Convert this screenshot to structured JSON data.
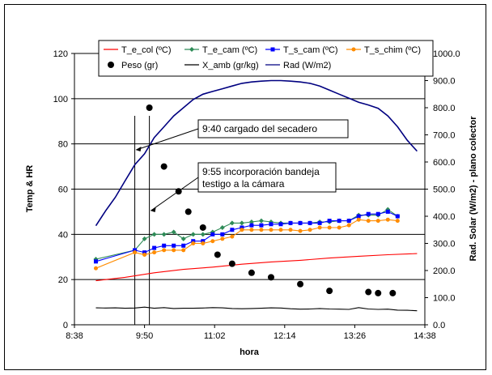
{
  "chart_data": {
    "type": "line",
    "xlabel": "hora",
    "ylabel": "Temp & HR",
    "y2label": "Rad. Solar (W/m2) - plano colector",
    "x_ticks": [
      "8:38",
      "9:50",
      "11:02",
      "12:14",
      "13:26",
      "14:38"
    ],
    "x_range": [
      "8:38",
      "14:38"
    ],
    "ylim": [
      0,
      120
    ],
    "y_ticks": [
      "0",
      "20",
      "40",
      "60",
      "80",
      "100",
      "120"
    ],
    "y2lim": [
      0,
      1000
    ],
    "y2_ticks": [
      "0.0",
      "100.0",
      "200.0",
      "300.0",
      "400.0",
      "500.0",
      "600.0",
      "700.0",
      "800.0",
      "900.0",
      "1000.0"
    ],
    "grid": "horizontal major gridlines",
    "legend_position": "top",
    "vertical_markers": [
      "9:40",
      "9:55"
    ],
    "annotations": [
      {
        "lines": [
          "9:40 cargado del secadero"
        ],
        "x": "9:40"
      },
      {
        "lines": [
          "9:55 incorporación bandeja",
          "testigo a la cámara"
        ],
        "x": "9:55"
      }
    ],
    "series": [
      {
        "name": "T_e_col (ºC)",
        "axis": "left",
        "color": "#ff0000",
        "marker": "none",
        "x": [
          "9:00",
          "9:30",
          "10:00",
          "10:30",
          "11:00",
          "11:30",
          "12:00",
          "12:30",
          "13:00",
          "13:30",
          "14:00",
          "14:30"
        ],
        "values": [
          19.5,
          21,
          23,
          24.5,
          25.5,
          26.8,
          27.8,
          28.5,
          29.5,
          30.3,
          31,
          31.5
        ]
      },
      {
        "name": "T_e_cam (ºC)",
        "axis": "left",
        "color": "#2e8b57",
        "marker": "diamond",
        "x": [
          "9:00",
          "9:40",
          "9:50",
          "10:00",
          "10:10",
          "10:20",
          "10:30",
          "10:40",
          "10:50",
          "11:00",
          "11:10",
          "11:20",
          "11:30",
          "11:40",
          "11:50",
          "12:00",
          "12:10",
          "12:20",
          "12:30",
          "12:40",
          "12:50",
          "13:00",
          "13:10",
          "13:20",
          "13:30",
          "13:40",
          "13:50",
          "14:00",
          "14:10"
        ],
        "values": [
          29,
          33,
          38,
          40,
          40,
          41,
          38,
          40,
          40,
          41,
          43,
          45,
          45,
          45.5,
          46,
          45.5,
          45,
          45,
          45,
          45,
          45.5,
          45.5,
          46,
          46,
          48.5,
          48.5,
          48.5,
          51,
          48
        ]
      },
      {
        "name": "T_s_cam (ºC)",
        "axis": "left",
        "color": "#0000ff",
        "marker": "square",
        "x": [
          "9:00",
          "9:40",
          "9:50",
          "10:00",
          "10:10",
          "10:20",
          "10:30",
          "10:40",
          "10:50",
          "11:00",
          "11:10",
          "11:20",
          "11:30",
          "11:40",
          "11:50",
          "12:00",
          "12:10",
          "12:20",
          "12:30",
          "12:40",
          "12:50",
          "13:00",
          "13:10",
          "13:20",
          "13:30",
          "13:40",
          "13:50",
          "14:00",
          "14:10"
        ],
        "values": [
          28,
          33,
          32,
          34,
          35,
          35,
          35,
          37,
          37,
          40,
          40,
          42,
          43,
          44,
          44,
          44.5,
          44.5,
          45,
          45,
          45,
          45,
          46,
          46,
          46,
          48,
          49,
          49,
          50,
          48
        ]
      },
      {
        "name": "T_s_chim (ºC)",
        "axis": "left",
        "color": "#ff8c00",
        "marker": "circle",
        "x": [
          "9:00",
          "9:40",
          "9:50",
          "10:00",
          "10:10",
          "10:20",
          "10:30",
          "10:40",
          "10:50",
          "11:00",
          "11:10",
          "11:20",
          "11:30",
          "11:40",
          "11:50",
          "12:00",
          "12:10",
          "12:20",
          "12:30",
          "12:40",
          "12:50",
          "13:00",
          "13:10",
          "13:20",
          "13:30",
          "13:40",
          "13:50",
          "14:00",
          "14:10"
        ],
        "values": [
          25,
          32,
          31,
          32,
          33,
          33,
          33,
          36,
          36,
          37,
          38,
          39,
          42,
          42,
          42,
          42,
          42,
          42,
          41.5,
          42,
          43,
          43,
          43,
          44,
          46.5,
          46,
          46,
          46.5,
          46
        ]
      },
      {
        "name": "Peso (gr)",
        "axis": "left",
        "color": "#000000",
        "marker": "filled-circle",
        "line": "none",
        "x": [
          "9:55",
          "10:10",
          "10:25",
          "10:35",
          "10:50",
          "11:05",
          "11:20",
          "11:40",
          "12:00",
          "12:30",
          "13:00",
          "13:40",
          "13:50",
          "14:05"
        ],
        "values": [
          96,
          70,
          59,
          50,
          43,
          31,
          27,
          23,
          21,
          18,
          15,
          14.5,
          14,
          14
        ]
      },
      {
        "name": "X_amb (gr/kg)",
        "axis": "left",
        "color": "#000000",
        "marker": "none",
        "x": [
          "9:00",
          "9:10",
          "9:20",
          "9:30",
          "9:40",
          "9:50",
          "10:00",
          "10:10",
          "10:20",
          "10:30",
          "10:40",
          "10:50",
          "11:00",
          "11:10",
          "11:20",
          "11:30",
          "11:40",
          "11:50",
          "12:00",
          "12:10",
          "12:20",
          "12:30",
          "12:40",
          "12:50",
          "13:00",
          "13:10",
          "13:20",
          "13:30",
          "13:40",
          "13:50",
          "14:00",
          "14:10",
          "14:20",
          "14:30"
        ],
        "values": [
          7.5,
          7.4,
          7.5,
          7.3,
          7.4,
          7.8,
          7.3,
          7.6,
          7.2,
          7.3,
          7.3,
          7.4,
          7.6,
          7.5,
          7.2,
          7.1,
          7.2,
          7.3,
          7.5,
          7.4,
          7.1,
          6.9,
          7.0,
          7.2,
          7.0,
          6.9,
          6.8,
          7.6,
          7.0,
          6.8,
          6.9,
          6.5,
          6.4,
          6.2
        ]
      },
      {
        "name": "Rad (W/m2)",
        "axis": "right",
        "color": "#000080",
        "marker": "none",
        "x": [
          "9:00",
          "9:10",
          "9:20",
          "9:30",
          "9:40",
          "9:50",
          "10:00",
          "10:10",
          "10:20",
          "10:30",
          "10:40",
          "10:50",
          "11:00",
          "11:10",
          "11:20",
          "11:30",
          "11:40",
          "11:50",
          "12:00",
          "12:10",
          "12:20",
          "12:30",
          "12:40",
          "12:50",
          "13:00",
          "13:10",
          "13:20",
          "13:30",
          "13:40",
          "13:50",
          "14:00",
          "14:10",
          "14:20",
          "14:30"
        ],
        "values": [
          365,
          420,
          470,
          530,
          590,
          630,
          690,
          730,
          770,
          800,
          830,
          850,
          860,
          870,
          880,
          890,
          895,
          898,
          900,
          900,
          898,
          895,
          890,
          880,
          865,
          850,
          835,
          820,
          810,
          798,
          770,
          730,
          680,
          640
        ]
      }
    ]
  }
}
